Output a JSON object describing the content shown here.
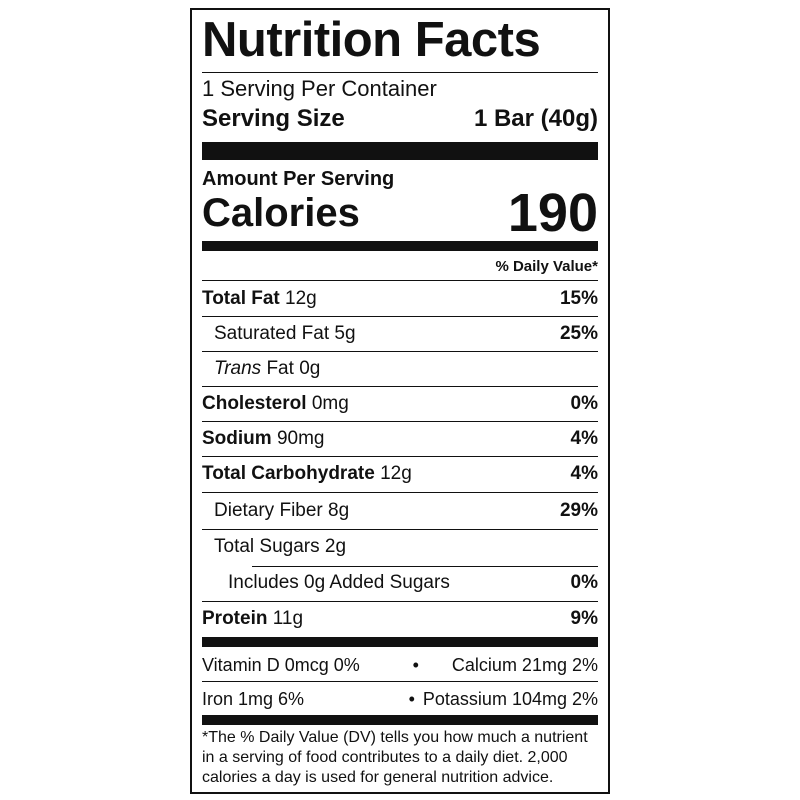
{
  "header": {
    "title": "Nutrition Facts",
    "servings": "1 Serving Per Container",
    "serving_size_label": "Serving Size",
    "serving_size": "1 Bar (40g)"
  },
  "calories": {
    "amount_per_serving": "Amount Per Serving",
    "label": "Calories",
    "value": "190",
    "dv_header": "% Daily Value*"
  },
  "nutrients": [
    {
      "label": "Total Fat",
      "amount": "12g",
      "dv": "15%"
    },
    {
      "label": "Saturated Fat",
      "amount": "5g",
      "dv": "25%"
    },
    {
      "label_italic": "Trans",
      "label": "Fat",
      "amount": "0g"
    },
    {
      "label": "Cholesterol",
      "amount": "0mg",
      "dv": "0%"
    },
    {
      "label": "Sodium",
      "amount": "90mg",
      "dv": "4%"
    },
    {
      "label": "Total Carbohydrate",
      "amount": "12g",
      "dv": "4%"
    },
    {
      "label": "Dietary Fiber",
      "amount": "8g",
      "dv": "29%"
    },
    {
      "label": "Total Sugars",
      "amount": "2g"
    },
    {
      "label": "Includes 0g Added Sugars",
      "dv": "0%"
    },
    {
      "label": "Protein",
      "amount": "11g",
      "dv": "9%"
    }
  ],
  "vitamins": [
    {
      "text": "Vitamin D 0mcg 0%"
    },
    {
      "text": "Calcium 21mg 2%"
    },
    {
      "text": "Iron 1mg 6%"
    },
    {
      "text": "Potassium 104mg 2%"
    }
  ],
  "footnote": [
    "*The % Daily Value (DV) tells you how much a nutrient",
    "in a serving of food contributes to a daily diet. 2,000",
    "calories a day is used for general nutrition advice."
  ]
}
